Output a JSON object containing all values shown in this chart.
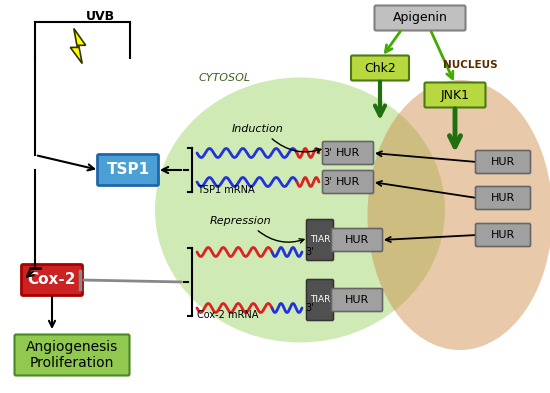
{
  "fig_width": 5.5,
  "fig_height": 3.93,
  "dpi": 100,
  "bg_color": "#ffffff",
  "cytosol_color": "#88cc44",
  "nucleus_color": "#cc8844",
  "apigenin_color": "#c0c0c0",
  "chk2_color": "#b8d840",
  "jnk1_color": "#b8d840",
  "hur_gray": "#a0a0a0",
  "tiar_dark": "#505050",
  "tsp1_blue": "#4a9fd4",
  "cox2_red": "#cc2222",
  "angio_green": "#90c850",
  "green_arrow": "#207010",
  "bright_green_arrow": "#44aa00",
  "labels": {
    "uvb": "UVB",
    "apigenin": "Apigenin",
    "cytosol": "CYTOSOL",
    "nucleus": "NUCLEUS",
    "chk2": "Chk2",
    "jnk1": "JNK1",
    "hur": "HUR",
    "tiar": "TIAR",
    "tsp1": "TSP1",
    "cox2": "Cox-2",
    "tsp1_mrna": "TSP1 mRNA",
    "cox2_mrna": "Cox-2 mRNA",
    "induction": "Induction",
    "repression": "Repression",
    "angio": "Angiogenesis\nProliferation",
    "three_prime": "3'"
  }
}
